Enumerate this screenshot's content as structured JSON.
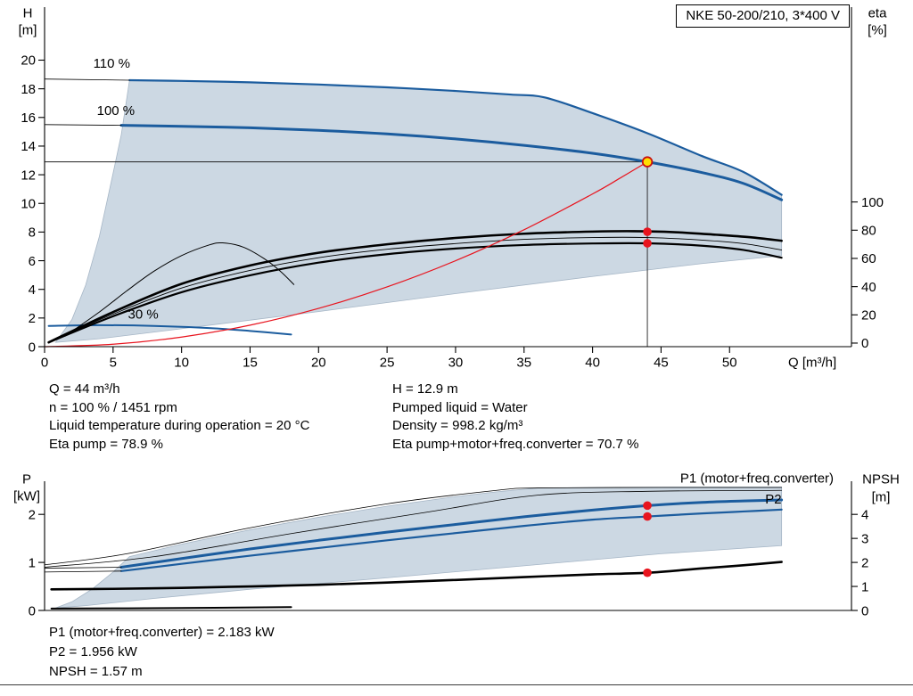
{
  "title": "NKE 50-200/210, 3*400 V",
  "info": {
    "left": [
      "Q = 44 m³/h",
      "n = 100 % / 1451 rpm",
      "Liquid temperature during operation = 20 °C",
      "Eta pump = 78.9 %"
    ],
    "right": [
      "H = 12.9 m",
      "Pumped liquid = Water",
      "Density = 998.2 kg/m³",
      "Eta pump+motor+freq.converter = 70.7 %"
    ]
  },
  "results": [
    "P1 (motor+freq.converter) = 2.183 kW",
    "P2 = 1.956 kW",
    "NPSH = 1.57 m"
  ],
  "colors": {
    "curve_blue": "#1b5c9e",
    "envelope": "#ccd8e3",
    "envelope_edge": "#a6b6c6",
    "red": "#e8141e",
    "op_fill": "#ffdf00",
    "axis": "#000000"
  },
  "chart_data": [
    {
      "id": "qh",
      "type": "line",
      "x_axis": {
        "label": "Q [m³/h]",
        "min": 0,
        "max": 58.9,
        "ticks": [
          0,
          5,
          10,
          15,
          20,
          25,
          30,
          35,
          40,
          45,
          50
        ]
      },
      "y_left": {
        "label": [
          "H",
          "[m]"
        ],
        "min": 0,
        "max": 23.7,
        "ticks": [
          0,
          2,
          4,
          6,
          8,
          10,
          12,
          14,
          16,
          18,
          20
        ]
      },
      "y_right": {
        "label": [
          "eta",
          "[%]"
        ],
        "ticks": [
          0,
          20,
          40,
          60,
          80,
          100
        ],
        "zero_at": 0.25,
        "full_at": 10.1,
        "full_value": 100
      },
      "envelope": [
        [
          0.8,
          0.3
        ],
        [
          2,
          1.9
        ],
        [
          3,
          4.3
        ],
        [
          4,
          7.7
        ],
        [
          5,
          12.1
        ],
        [
          5.6,
          14.8
        ],
        [
          6.2,
          18.6
        ],
        [
          10,
          18.55
        ],
        [
          15,
          18.45
        ],
        [
          20,
          18.3
        ],
        [
          25,
          18.1
        ],
        [
          30,
          17.85
        ],
        [
          34,
          17.6
        ],
        [
          36.5,
          17.4
        ],
        [
          40,
          16.3
        ],
        [
          44,
          14.9
        ],
        [
          48,
          13.3
        ],
        [
          51,
          12.2
        ],
        [
          53.8,
          10.6
        ],
        [
          53.8,
          6.35
        ],
        [
          48,
          5.8
        ],
        [
          40,
          4.9
        ],
        [
          30,
          3.7
        ],
        [
          20,
          2.45
        ],
        [
          10,
          1.25
        ],
        [
          4,
          0.55
        ]
      ],
      "curves": [
        {
          "name": "speed-110",
          "color": "blue",
          "width": 2.2,
          "points": [
            [
              6.2,
              18.6
            ],
            [
              10,
              18.55
            ],
            [
              15,
              18.45
            ],
            [
              20,
              18.3
            ],
            [
              25,
              18.1
            ],
            [
              30,
              17.85
            ],
            [
              34,
              17.6
            ],
            [
              36.5,
              17.4
            ],
            [
              40,
              16.3
            ],
            [
              44,
              14.9
            ],
            [
              48,
              13.3
            ],
            [
              51,
              12.2
            ],
            [
              53.8,
              10.6
            ]
          ]
        },
        {
          "name": "speed-110-lead",
          "color": "black",
          "width": 0.8,
          "points": [
            [
              0,
              18.68
            ],
            [
              6.2,
              18.6
            ]
          ]
        },
        {
          "name": "speed-100",
          "color": "blue",
          "width": 3,
          "points": [
            [
              5.6,
              15.45
            ],
            [
              10,
              15.38
            ],
            [
              15,
              15.28
            ],
            [
              20,
              15.1
            ],
            [
              25,
              14.85
            ],
            [
              30,
              14.5
            ],
            [
              35,
              14.05
            ],
            [
              40,
              13.5
            ],
            [
              44,
              12.9
            ],
            [
              48,
              12.15
            ],
            [
              51,
              11.4
            ],
            [
              53.8,
              10.25
            ]
          ]
        },
        {
          "name": "speed-100-lead",
          "color": "black",
          "width": 0.8,
          "points": [
            [
              0,
              15.5
            ],
            [
              5.6,
              15.45
            ]
          ]
        },
        {
          "name": "speed-30",
          "color": "blue",
          "width": 2,
          "points": [
            [
              0.3,
              1.45
            ],
            [
              4,
              1.5
            ],
            [
              8,
              1.45
            ],
            [
              12,
              1.3
            ],
            [
              15,
              1.1
            ],
            [
              18,
              0.85
            ]
          ]
        },
        {
          "name": "eta-pump",
          "color": "black",
          "width": 2.6,
          "axis": "right",
          "points": [
            [
              0.3,
              0.5
            ],
            [
              5,
              22
            ],
            [
              10,
              42
            ],
            [
              15,
              55
            ],
            [
              20,
              64
            ],
            [
              25,
              70
            ],
            [
              30,
              74.5
            ],
            [
              35,
              77.5
            ],
            [
              40,
              79
            ],
            [
              43,
              79.3
            ],
            [
              46,
              78.6
            ],
            [
              49,
              76.8
            ],
            [
              51.5,
              75
            ],
            [
              53.8,
              72.5
            ]
          ]
        },
        {
          "name": "eta-pump-thin",
          "color": "black",
          "width": 0.9,
          "axis": "right",
          "points": [
            [
              0.3,
              0.5
            ],
            [
              5,
              20.5
            ],
            [
              10,
              39
            ],
            [
              15,
              51.5
            ],
            [
              20,
              60.5
            ],
            [
              25,
              66.5
            ],
            [
              30,
              70.5
            ],
            [
              35,
              73.5
            ],
            [
              40,
              74.8
            ],
            [
              44,
              74.8
            ],
            [
              48,
              73
            ],
            [
              51,
              70.5
            ],
            [
              53.8,
              66
            ]
          ]
        },
        {
          "name": "eta-total",
          "color": "black",
          "width": 2.2,
          "axis": "right",
          "points": [
            [
              0.3,
              0.5
            ],
            [
              5,
              19
            ],
            [
              10,
              36
            ],
            [
              15,
              48
            ],
            [
              20,
              57
            ],
            [
              25,
              63
            ],
            [
              30,
              67
            ],
            [
              35,
              69.5
            ],
            [
              40,
              70.6
            ],
            [
              44,
              70.7
            ],
            [
              48,
              69
            ],
            [
              51,
              66
            ],
            [
              53.8,
              60.5
            ]
          ]
        },
        {
          "name": "eta-arc",
          "color": "black",
          "width": 1,
          "axis": "right",
          "points": [
            [
              1.5,
              5
            ],
            [
              4,
              22
            ],
            [
              6,
              37
            ],
            [
              8,
              51
            ],
            [
              10,
              62
            ],
            [
              12,
              69.5
            ],
            [
              13,
              71
            ],
            [
              14.5,
              68
            ],
            [
              16,
              60
            ],
            [
              17.2,
              51
            ],
            [
              18.2,
              41.5
            ]
          ]
        },
        {
          "name": "system-curve",
          "color": "red",
          "width": 1.2,
          "points": [
            [
              0,
              0
            ],
            [
              5,
              0.17
            ],
            [
              10,
              0.67
            ],
            [
              15,
              1.5
            ],
            [
              20,
              2.67
            ],
            [
              25,
              4.17
            ],
            [
              30,
              6
            ],
            [
              35,
              8.16
            ],
            [
              40,
              10.66
            ],
            [
              42,
              11.76
            ],
            [
              44,
              12.9
            ]
          ]
        }
      ],
      "ref_lines": [
        {
          "type": "v",
          "q": 44,
          "from": 0,
          "to": 12.9
        },
        {
          "type": "h",
          "value": 12.9,
          "from": 0,
          "to": 44
        }
      ],
      "labels": [
        {
          "text": "110 %",
          "q": 4.9,
          "v": 19.8
        },
        {
          "text": "100 %",
          "q": 5.2,
          "v": 16.5
        },
        {
          "text": "30 %",
          "q": 7.2,
          "v": 2.3
        }
      ],
      "markers": [
        {
          "q": 44,
          "v": 12.9,
          "style": "op",
          "name": "operating-point"
        },
        {
          "q": 44,
          "v": 78.9,
          "axis": "right",
          "style": "dot",
          "name": "eta-pump-duty-dot"
        },
        {
          "q": 44,
          "v": 70.7,
          "axis": "right",
          "style": "dot",
          "name": "eta-total-duty-dot"
        }
      ]
    },
    {
      "id": "power-npsh",
      "type": "line",
      "x_axis": {
        "label": "",
        "min": 0,
        "max": 58.9,
        "ticks": []
      },
      "y_left": {
        "label": [
          "P",
          "[kW]"
        ],
        "min": 0,
        "max": 2.69,
        "ticks": [
          0,
          1,
          2
        ]
      },
      "y_right": {
        "label": [
          "NPSH",
          "[m]"
        ],
        "ticks": [
          0,
          1,
          2,
          3,
          4
        ],
        "zero_at": 0,
        "full_at": 2,
        "full_value": 4
      },
      "envelope": [
        [
          0.8,
          0.05
        ],
        [
          2,
          0.18
        ],
        [
          3.5,
          0.45
        ],
        [
          5,
          0.8
        ],
        [
          6.2,
          1.12
        ],
        [
          10,
          1.38
        ],
        [
          15,
          1.68
        ],
        [
          20,
          1.94
        ],
        [
          25,
          2.17
        ],
        [
          30,
          2.37
        ],
        [
          33,
          2.47
        ],
        [
          36,
          2.55
        ],
        [
          40,
          2.56
        ],
        [
          46,
          2.57
        ],
        [
          53.8,
          2.57
        ],
        [
          53.8,
          1.35
        ],
        [
          45,
          1.18
        ],
        [
          35,
          0.93
        ],
        [
          25,
          0.68
        ],
        [
          15,
          0.44
        ],
        [
          8,
          0.25
        ],
        [
          3,
          0.1
        ]
      ],
      "curves": [
        {
          "name": "power-upper-thin",
          "color": "black",
          "width": 0.8,
          "points": [
            [
              0,
              0.95
            ],
            [
              6,
              1.18
            ],
            [
              15,
              1.72
            ],
            [
              25,
              2.22
            ],
            [
              33,
              2.5
            ],
            [
              36,
              2.55
            ],
            [
              45,
              2.56
            ],
            [
              53.8,
              2.56
            ]
          ]
        },
        {
          "name": "power-mid-thin",
          "color": "black",
          "width": 0.8,
          "points": [
            [
              0,
              0.9
            ],
            [
              8,
              1.12
            ],
            [
              18,
              1.6
            ],
            [
              28,
              2.05
            ],
            [
              36,
              2.4
            ],
            [
              44,
              2.48
            ],
            [
              53.8,
              2.5
            ]
          ]
        },
        {
          "name": "p2",
          "color": "blue",
          "width": 2.2,
          "points": [
            [
              5.6,
              0.82
            ],
            [
              10,
              0.97
            ],
            [
              15,
              1.14
            ],
            [
              20,
              1.3
            ],
            [
              25,
              1.46
            ],
            [
              30,
              1.61
            ],
            [
              35,
              1.76
            ],
            [
              40,
              1.89
            ],
            [
              44,
              1.956
            ],
            [
              48,
              2.02
            ],
            [
              51,
              2.06
            ],
            [
              53.8,
              2.1
            ]
          ]
        },
        {
          "name": "p2-lead",
          "color": "black",
          "width": 0.8,
          "points": [
            [
              0,
              0.8
            ],
            [
              5.6,
              0.82
            ]
          ]
        },
        {
          "name": "p1",
          "color": "blue",
          "width": 3,
          "points": [
            [
              5.6,
              0.9
            ],
            [
              10,
              1.08
            ],
            [
              15,
              1.28
            ],
            [
              20,
              1.46
            ],
            [
              25,
              1.63
            ],
            [
              30,
              1.79
            ],
            [
              35,
              1.95
            ],
            [
              40,
              2.09
            ],
            [
              44,
              2.183
            ],
            [
              48,
              2.25
            ],
            [
              51,
              2.28
            ],
            [
              53.8,
              2.3
            ]
          ]
        },
        {
          "name": "p1-lead",
          "color": "black",
          "width": 0.8,
          "points": [
            [
              0,
              0.88
            ],
            [
              5.6,
              0.9
            ]
          ]
        },
        {
          "name": "npsh",
          "color": "black",
          "width": 2.6,
          "axis": "right",
          "points": [
            [
              0.5,
              0.88
            ],
            [
              5,
              0.9
            ],
            [
              10,
              0.94
            ],
            [
              15,
              1
            ],
            [
              20,
              1.07
            ],
            [
              25,
              1.16
            ],
            [
              30,
              1.27
            ],
            [
              35,
              1.39
            ],
            [
              40,
              1.5
            ],
            [
              44,
              1.57
            ],
            [
              48,
              1.75
            ],
            [
              51,
              1.88
            ],
            [
              53.8,
              2.02
            ]
          ]
        },
        {
          "name": "speed-30-power",
          "color": "black",
          "width": 2,
          "points": [
            [
              0.5,
              0.04
            ],
            [
              10,
              0.05
            ],
            [
              18,
              0.07
            ]
          ]
        }
      ],
      "ref_lines": [],
      "labels": [
        {
          "text": "P1 (motor+freq.converter)",
          "q": 52,
          "v": 2.76,
          "color": "blue"
        },
        {
          "text": "P2",
          "q": 53.2,
          "v": 2.32,
          "color": "blue"
        }
      ],
      "markers": [
        {
          "q": 44,
          "v": 2.183,
          "style": "dot",
          "name": "p1-duty-dot"
        },
        {
          "q": 44,
          "v": 1.956,
          "style": "dot",
          "name": "p2-duty-dot"
        },
        {
          "q": 44,
          "v": 1.57,
          "axis": "right",
          "style": "dot",
          "name": "npsh-duty-dot"
        }
      ]
    }
  ]
}
